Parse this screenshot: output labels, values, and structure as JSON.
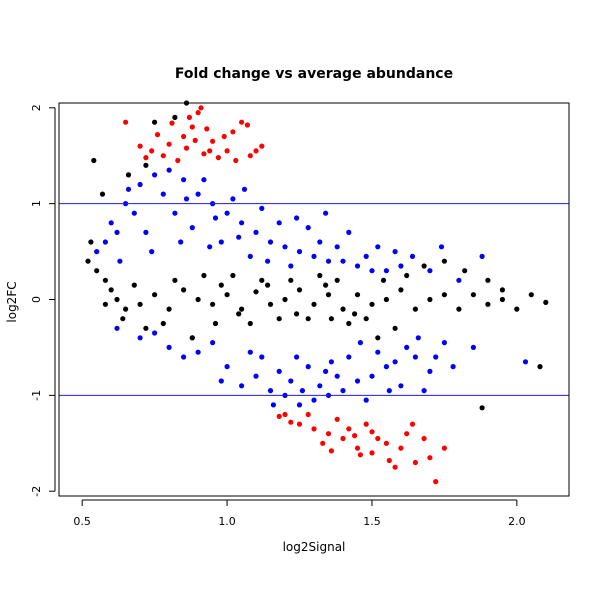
{
  "chart_data": {
    "type": "scatter",
    "title": "Fold change vs average abundance",
    "xlabel": "log2Signal",
    "ylabel": "log2FC",
    "xlim": [
      0.42,
      2.18
    ],
    "ylim": [
      -2.05,
      2.05
    ],
    "xticks": [
      0.5,
      1.0,
      1.5,
      2.0
    ],
    "xtick_labels": [
      "0.5",
      "1.0",
      "1.5",
      "2.0"
    ],
    "yticks": [
      -2,
      -1,
      0,
      1,
      2
    ],
    "ytick_labels": [
      "-2",
      "-1",
      "0",
      "1",
      "2"
    ],
    "reference_lines": [
      {
        "axis": "y",
        "value": 1,
        "color": "#1a1aff"
      },
      {
        "axis": "y",
        "value": -1,
        "color": "#1a1aff"
      }
    ],
    "grid": false,
    "legend": "none",
    "colors": {
      "non_significant": "#000000",
      "fold_change_1_to_1_4": "#0000ff",
      "fold_change_above_1_4": "#ff0000"
    },
    "series": [
      {
        "color": "#ff0000",
        "points": [
          [
            0.8,
            1.62
          ],
          [
            0.85,
            1.7
          ],
          [
            0.9,
            1.95
          ],
          [
            0.91,
            2.0
          ],
          [
            0.88,
            1.8
          ],
          [
            0.95,
            1.65
          ],
          [
            1.0,
            1.55
          ],
          [
            1.02,
            1.75
          ],
          [
            1.05,
            1.85
          ],
          [
            1.07,
            1.82
          ],
          [
            1.1,
            1.55
          ],
          [
            0.78,
            1.5
          ],
          [
            0.74,
            1.55
          ],
          [
            0.7,
            1.6
          ],
          [
            0.65,
            1.85
          ],
          [
            0.83,
            1.45
          ],
          [
            0.97,
            1.48
          ],
          [
            1.03,
            1.45
          ],
          [
            0.86,
            1.58
          ],
          [
            0.93,
            1.78
          ],
          [
            0.76,
            1.72
          ],
          [
            0.89,
            1.66
          ],
          [
            0.99,
            1.7
          ],
          [
            0.72,
            1.48
          ],
          [
            1.12,
            1.6
          ],
          [
            0.81,
            1.84
          ],
          [
            0.94,
            1.55
          ],
          [
            1.08,
            1.5
          ],
          [
            0.87,
            1.9
          ],
          [
            0.92,
            1.52
          ],
          [
            1.2,
            -1.2
          ],
          [
            1.25,
            -1.3
          ],
          [
            1.3,
            -1.35
          ],
          [
            1.35,
            -1.4
          ],
          [
            1.4,
            -1.45
          ],
          [
            1.45,
            -1.55
          ],
          [
            1.5,
            -1.6
          ],
          [
            1.55,
            -1.5
          ],
          [
            1.6,
            -1.55
          ],
          [
            1.65,
            -1.7
          ],
          [
            1.7,
            -1.65
          ],
          [
            1.72,
            -1.9
          ],
          [
            1.75,
            -1.55
          ],
          [
            1.48,
            -1.3
          ],
          [
            1.38,
            -1.25
          ],
          [
            1.28,
            -1.2
          ],
          [
            1.42,
            -1.35
          ],
          [
            1.52,
            -1.45
          ],
          [
            1.58,
            -1.75
          ],
          [
            1.62,
            -1.4
          ],
          [
            1.33,
            -1.5
          ],
          [
            1.46,
            -1.62
          ],
          [
            1.68,
            -1.45
          ],
          [
            1.22,
            -1.28
          ],
          [
            1.36,
            -1.58
          ],
          [
            1.56,
            -1.68
          ],
          [
            1.44,
            -1.42
          ],
          [
            1.18,
            -1.22
          ],
          [
            1.64,
            -1.3
          ],
          [
            1.5,
            -1.38
          ]
        ]
      },
      {
        "color": "#0000ff",
        "points": [
          [
            0.55,
            0.5
          ],
          [
            0.6,
            0.8
          ],
          [
            0.65,
            1.0
          ],
          [
            0.7,
            1.2
          ],
          [
            0.75,
            1.3
          ],
          [
            0.8,
            1.35
          ],
          [
            0.85,
            1.25
          ],
          [
            0.9,
            1.1
          ],
          [
            0.95,
            1.0
          ],
          [
            1.0,
            0.9
          ],
          [
            1.05,
            0.8
          ],
          [
            1.1,
            0.7
          ],
          [
            1.15,
            0.6
          ],
          [
            1.2,
            0.55
          ],
          [
            1.25,
            0.5
          ],
          [
            1.3,
            0.45
          ],
          [
            1.35,
            0.4
          ],
          [
            1.4,
            0.4
          ],
          [
            1.45,
            0.35
          ],
          [
            1.5,
            0.3
          ],
          [
            1.55,
            0.3
          ],
          [
            1.6,
            0.35
          ],
          [
            1.7,
            0.3
          ],
          [
            1.8,
            0.2
          ],
          [
            1.88,
            0.45
          ],
          [
            0.58,
            0.6
          ],
          [
            0.63,
            0.4
          ],
          [
            0.68,
            0.9
          ],
          [
            0.72,
            0.7
          ],
          [
            0.78,
            1.1
          ],
          [
            0.82,
            0.9
          ],
          [
            0.88,
            0.75
          ],
          [
            0.92,
            1.25
          ],
          [
            0.98,
            0.6
          ],
          [
            1.02,
            1.05
          ],
          [
            1.08,
            0.45
          ],
          [
            1.12,
            0.95
          ],
          [
            1.18,
            0.8
          ],
          [
            1.22,
            0.35
          ],
          [
            1.28,
            0.75
          ],
          [
            1.32,
            0.6
          ],
          [
            1.38,
            0.55
          ],
          [
            1.42,
            0.7
          ],
          [
            1.48,
            0.45
          ],
          [
            1.52,
            0.55
          ],
          [
            1.58,
            0.5
          ],
          [
            1.64,
            0.45
          ],
          [
            1.74,
            0.55
          ],
          [
            0.66,
            1.15
          ],
          [
            0.74,
            0.5
          ],
          [
            0.86,
            1.05
          ],
          [
            0.94,
            0.55
          ],
          [
            1.04,
            0.65
          ],
          [
            1.14,
            0.4
          ],
          [
            1.24,
            0.85
          ],
          [
            1.34,
            0.9
          ],
          [
            0.62,
            0.7
          ],
          [
            0.84,
            0.6
          ],
          [
            0.96,
            0.85
          ],
          [
            1.06,
            1.15
          ],
          [
            0.62,
            -0.3
          ],
          [
            0.7,
            -0.4
          ],
          [
            0.8,
            -0.5
          ],
          [
            0.9,
            -0.55
          ],
          [
            1.0,
            -0.7
          ],
          [
            1.1,
            -0.8
          ],
          [
            1.15,
            -0.95
          ],
          [
            1.2,
            -1.0
          ],
          [
            1.25,
            -1.1
          ],
          [
            1.3,
            -1.05
          ],
          [
            1.35,
            -1.0
          ],
          [
            1.4,
            -0.95
          ],
          [
            1.45,
            -0.85
          ],
          [
            1.5,
            -0.8
          ],
          [
            1.55,
            -0.7
          ],
          [
            1.6,
            -0.9
          ],
          [
            1.65,
            -0.6
          ],
          [
            1.7,
            -0.75
          ],
          [
            1.75,
            -0.45
          ],
          [
            1.85,
            -0.5
          ],
          [
            2.03,
            -0.65
          ],
          [
            0.75,
            -0.35
          ],
          [
            0.85,
            -0.6
          ],
          [
            0.95,
            -0.45
          ],
          [
            1.05,
            -0.9
          ],
          [
            1.12,
            -0.6
          ],
          [
            1.18,
            -0.75
          ],
          [
            1.22,
            -0.85
          ],
          [
            1.28,
            -0.7
          ],
          [
            1.32,
            -0.9
          ],
          [
            1.38,
            -0.8
          ],
          [
            1.42,
            -0.6
          ],
          [
            1.48,
            -1.05
          ],
          [
            1.52,
            -0.55
          ],
          [
            1.58,
            -0.65
          ],
          [
            1.62,
            -0.5
          ],
          [
            1.68,
            -0.95
          ],
          [
            1.72,
            -0.6
          ],
          [
            1.78,
            -0.7
          ],
          [
            0.88,
            -0.4
          ],
          [
            0.98,
            -0.85
          ],
          [
            1.08,
            -0.55
          ],
          [
            1.16,
            -1.1
          ],
          [
            1.26,
            -0.95
          ],
          [
            1.36,
            -0.65
          ],
          [
            1.46,
            -0.45
          ],
          [
            1.56,
            -0.95
          ],
          [
            1.66,
            -0.4
          ],
          [
            1.24,
            -0.6
          ],
          [
            1.34,
            -0.75
          ]
        ]
      },
      {
        "color": "#000000",
        "points": [
          [
            0.53,
            0.6
          ],
          [
            0.52,
            0.4
          ],
          [
            0.55,
            0.3
          ],
          [
            0.58,
            0.2
          ],
          [
            0.6,
            0.1
          ],
          [
            0.62,
            0.0
          ],
          [
            0.65,
            -0.1
          ],
          [
            0.68,
            0.15
          ],
          [
            0.7,
            -0.05
          ],
          [
            0.75,
            0.05
          ],
          [
            0.8,
            -0.1
          ],
          [
            0.85,
            0.1
          ],
          [
            0.9,
            0.0
          ],
          [
            0.95,
            -0.05
          ],
          [
            1.0,
            0.05
          ],
          [
            1.05,
            -0.1
          ],
          [
            1.1,
            0.08
          ],
          [
            1.15,
            -0.05
          ],
          [
            1.2,
            0.0
          ],
          [
            1.25,
            0.1
          ],
          [
            1.3,
            -0.05
          ],
          [
            1.35,
            0.05
          ],
          [
            1.4,
            -0.1
          ],
          [
            1.45,
            0.05
          ],
          [
            1.5,
            -0.05
          ],
          [
            1.55,
            0.0
          ],
          [
            1.6,
            0.1
          ],
          [
            1.65,
            -0.1
          ],
          [
            1.7,
            0.0
          ],
          [
            1.75,
            0.05
          ],
          [
            1.8,
            -0.1
          ],
          [
            1.85,
            0.05
          ],
          [
            1.9,
            -0.05
          ],
          [
            1.95,
            0.0
          ],
          [
            2.0,
            -0.1
          ],
          [
            2.05,
            0.05
          ],
          [
            2.1,
            -0.03
          ],
          [
            2.08,
            -0.7
          ],
          [
            1.88,
            -1.13
          ],
          [
            1.95,
            0.1
          ],
          [
            1.9,
            0.2
          ],
          [
            1.82,
            0.3
          ],
          [
            1.75,
            0.4
          ],
          [
            1.68,
            0.35
          ],
          [
            1.62,
            0.25
          ],
          [
            1.58,
            -0.3
          ],
          [
            1.52,
            -0.4
          ],
          [
            1.48,
            -0.2
          ],
          [
            1.42,
            -0.25
          ],
          [
            1.38,
            0.2
          ],
          [
            0.86,
            2.05
          ],
          [
            0.82,
            1.9
          ],
          [
            0.75,
            1.85
          ],
          [
            0.54,
            1.45
          ],
          [
            0.57,
            1.1
          ],
          [
            0.66,
            1.3
          ],
          [
            0.72,
            1.4
          ],
          [
            0.88,
            -0.4
          ],
          [
            0.78,
            -0.25
          ],
          [
            0.72,
            -0.3
          ],
          [
            0.64,
            -0.2
          ],
          [
            0.58,
            -0.05
          ],
          [
            1.02,
            0.25
          ],
          [
            1.08,
            -0.25
          ],
          [
            1.12,
            0.2
          ],
          [
            1.18,
            -0.2
          ],
          [
            1.22,
            0.2
          ],
          [
            1.28,
            -0.2
          ],
          [
            1.32,
            0.25
          ],
          [
            1.36,
            -0.2
          ],
          [
            0.92,
            0.25
          ],
          [
            0.96,
            -0.25
          ],
          [
            0.82,
            0.2
          ],
          [
            0.98,
            0.15
          ],
          [
            1.04,
            -0.15
          ],
          [
            1.14,
            0.15
          ],
          [
            1.24,
            -0.15
          ],
          [
            1.34,
            0.15
          ],
          [
            1.44,
            -0.15
          ],
          [
            1.54,
            0.2
          ]
        ]
      }
    ]
  }
}
